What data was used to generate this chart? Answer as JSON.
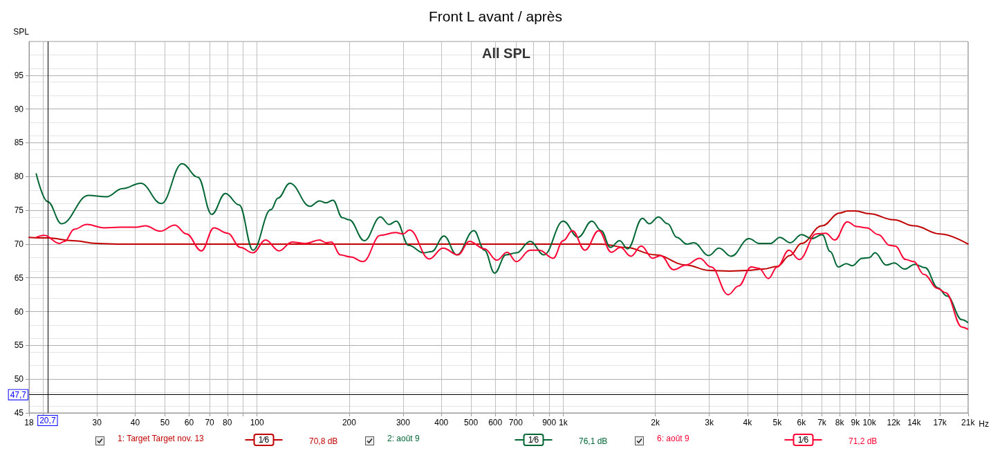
{
  "chart_data": {
    "type": "line",
    "title": "Front L avant / après",
    "subtitle": "All SPL",
    "ylabel": "SPL",
    "log": "x",
    "grid": true,
    "legend": "bottom",
    "marker": "none",
    "line_style": "solid",
    "xlim": [
      18,
      21000
    ],
    "xticks": [
      18,
      {
        "value": 20,
        "label": null
      },
      30,
      40,
      50,
      60,
      70,
      80,
      {
        "value": 90,
        "label": null
      },
      100,
      200,
      300,
      400,
      500,
      600,
      700,
      {
        "value": 800,
        "label": null
      },
      900,
      {
        "value": 1000,
        "label": "1k"
      },
      {
        "value": 2000,
        "label": "2k"
      },
      {
        "value": 3000,
        "label": "3k"
      },
      {
        "value": 4000,
        "label": "4k"
      },
      {
        "value": 5000,
        "label": "5k"
      },
      {
        "value": 6000,
        "label": "6k"
      },
      {
        "value": 7000,
        "label": "7k"
      },
      {
        "value": 8000,
        "label": "8k"
      },
      {
        "value": 9000,
        "label": "9k"
      },
      {
        "value": 10000,
        "label": "10k"
      },
      {
        "value": 12000,
        "label": "12k"
      },
      {
        "value": 14000,
        "label": "14k"
      },
      {
        "value": 17000,
        "label": "17k"
      },
      {
        "value": 21000,
        "label": "21k"
      }
    ],
    "xlabel": "Hz",
    "ylim": [
      45,
      100
    ],
    "yticks": [
      45,
      50,
      55,
      60,
      65,
      70,
      75,
      80,
      85,
      90,
      95
    ],
    "ref_lines": [
      {
        "axis": "x",
        "value": 20.7,
        "label": "20,7",
        "color": "#000000"
      },
      {
        "axis": "y",
        "value": 47.7,
        "label": "47,7",
        "color": "#000000"
      }
    ],
    "annotations": [
      "1⁄6",
      "70,8 dB",
      "1⁄6",
      "76,1 dB",
      "1⁄6",
      "71,2 dB"
    ],
    "series": [
      {
        "name": "1: Target Target nov. 13",
        "color": "#c00000",
        "x": [
          18,
          20.7,
          25,
          30,
          35,
          40,
          100,
          500,
          1000,
          1330,
          1600,
          2000,
          2520,
          3000,
          3500,
          4000,
          4500,
          5000,
          5500,
          6000,
          7000,
          8000,
          8500,
          9000,
          10000,
          12000,
          14000,
          17000,
          21000
        ],
        "values": [
          71,
          70.9,
          70.5,
          70.1,
          70,
          70,
          70,
          70,
          70,
          70,
          69.5,
          68.4,
          66.9,
          66.1,
          66.0,
          66.1,
          66.3,
          66.7,
          68.3,
          70.1,
          72.7,
          74.6,
          74.9,
          74.9,
          74.5,
          73.6,
          72.7,
          71.5,
          70.0
        ]
      },
      {
        "name": "2: août 9",
        "color": "#006633",
        "x": [
          19,
          20.7,
          23,
          28.1,
          32.2,
          36.3,
          41.7,
          48.7,
          56.9,
          64.1,
          71.1,
          78.8,
          87.4,
          97,
          111,
          117,
          128,
          149,
          160,
          168,
          177,
          190,
          200,
          224,
          253,
          270,
          285,
          313,
          350,
          372,
          408,
          449,
          511,
          553,
          597,
          650,
          703,
          780,
          865,
          1000,
          1119,
          1241,
          1330,
          1426,
          1528,
          1623,
          1815,
          1911,
          2047,
          2193,
          2350,
          2535,
          2672,
          2988,
          3228,
          3537,
          4044,
          4368,
          4761,
          5101,
          5513,
          6003,
          6488,
          7014,
          7450,
          7913,
          8405,
          8780,
          9477,
          10000,
          10430,
          11360,
          12060,
          13030,
          14080,
          15210,
          16740,
          17940,
          20060,
          20940
        ],
        "values": [
          80.4,
          76.3,
          73.0,
          77.2,
          77.0,
          78.2,
          79.0,
          76.0,
          81.9,
          79.9,
          74.4,
          77.5,
          75.8,
          69.1,
          75.1,
          76.8,
          79.0,
          75.6,
          76.4,
          76.1,
          76.5,
          73.9,
          73.6,
          70.5,
          74.0,
          72.9,
          73.4,
          69.8,
          68.7,
          68.9,
          71.2,
          68.4,
          72.0,
          69.1,
          65.7,
          68.4,
          68.7,
          70.4,
          68.4,
          73.4,
          71.0,
          73.4,
          72.0,
          69.5,
          70.5,
          69.3,
          73.8,
          73.0,
          74.0,
          73.0,
          71.0,
          70.0,
          70.2,
          68.3,
          69.4,
          68.2,
          70.8,
          70.1,
          70.1,
          71.0,
          70.2,
          71.4,
          70.8,
          71.4,
          68.9,
          66.6,
          67.1,
          66.8,
          67.9,
          68.0,
          68.7,
          66.9,
          67.2,
          66.3,
          67.0,
          66.5,
          63.5,
          62.3,
          58.8,
          58.4
        ]
      },
      {
        "name": "6: août 9",
        "color": "#ff0033",
        "x": [
          19,
          20.2,
          22.6,
          23.5,
          25.3,
          27.8,
          31.6,
          35.8,
          40.3,
          43.2,
          48.2,
          53.9,
          58.8,
          65.8,
          72.3,
          80.2,
          88.2,
          97,
          106.6,
          118,
          130,
          144,
          160,
          168,
          175,
          187,
          202,
          222,
          253,
          283,
          300,
          315,
          365,
          405,
          453,
          494,
          553,
          607,
          656,
          703,
          780,
          836,
          927,
          1000,
          1071,
          1178,
          1306,
          1436,
          1538,
          1663,
          1798,
          1961,
          2083,
          2293,
          2518,
          2790,
          3043,
          3459,
          3740,
          4112,
          4360,
          4680,
          5000,
          5460,
          5900,
          6710,
          7200,
          7710,
          8470,
          9080,
          9810,
          10700,
          11660,
          12130,
          13160,
          13970,
          15080,
          16740,
          17740,
          20060,
          20940
        ],
        "values": [
          71.0,
          71.3,
          70.1,
          70.4,
          72.2,
          72.9,
          72.4,
          72.5,
          72.5,
          72.7,
          71.9,
          72.8,
          71.5,
          69.0,
          72.4,
          71.6,
          69.5,
          68.7,
          70.6,
          69.0,
          70.3,
          70.1,
          70.6,
          70.2,
          70.3,
          68.4,
          68.1,
          67.4,
          71.3,
          71.7,
          71.5,
          72.1,
          67.8,
          69.4,
          68.4,
          70.4,
          69.3,
          67.6,
          68.8,
          67.4,
          69.1,
          69.1,
          67.9,
          70.5,
          72.0,
          69.1,
          72.0,
          68.8,
          69.5,
          68.2,
          69.7,
          67.9,
          68.3,
          66.2,
          66.9,
          67.9,
          66.6,
          62.5,
          63.8,
          66.6,
          66.4,
          64.9,
          66.6,
          69.1,
          67.7,
          71.5,
          71.6,
          70.6,
          73.3,
          72.6,
          72.4,
          71.4,
          69.8,
          69.7,
          67.7,
          67.4,
          65.5,
          63.4,
          62.8,
          57.7,
          57.4
        ]
      }
    ]
  }
}
